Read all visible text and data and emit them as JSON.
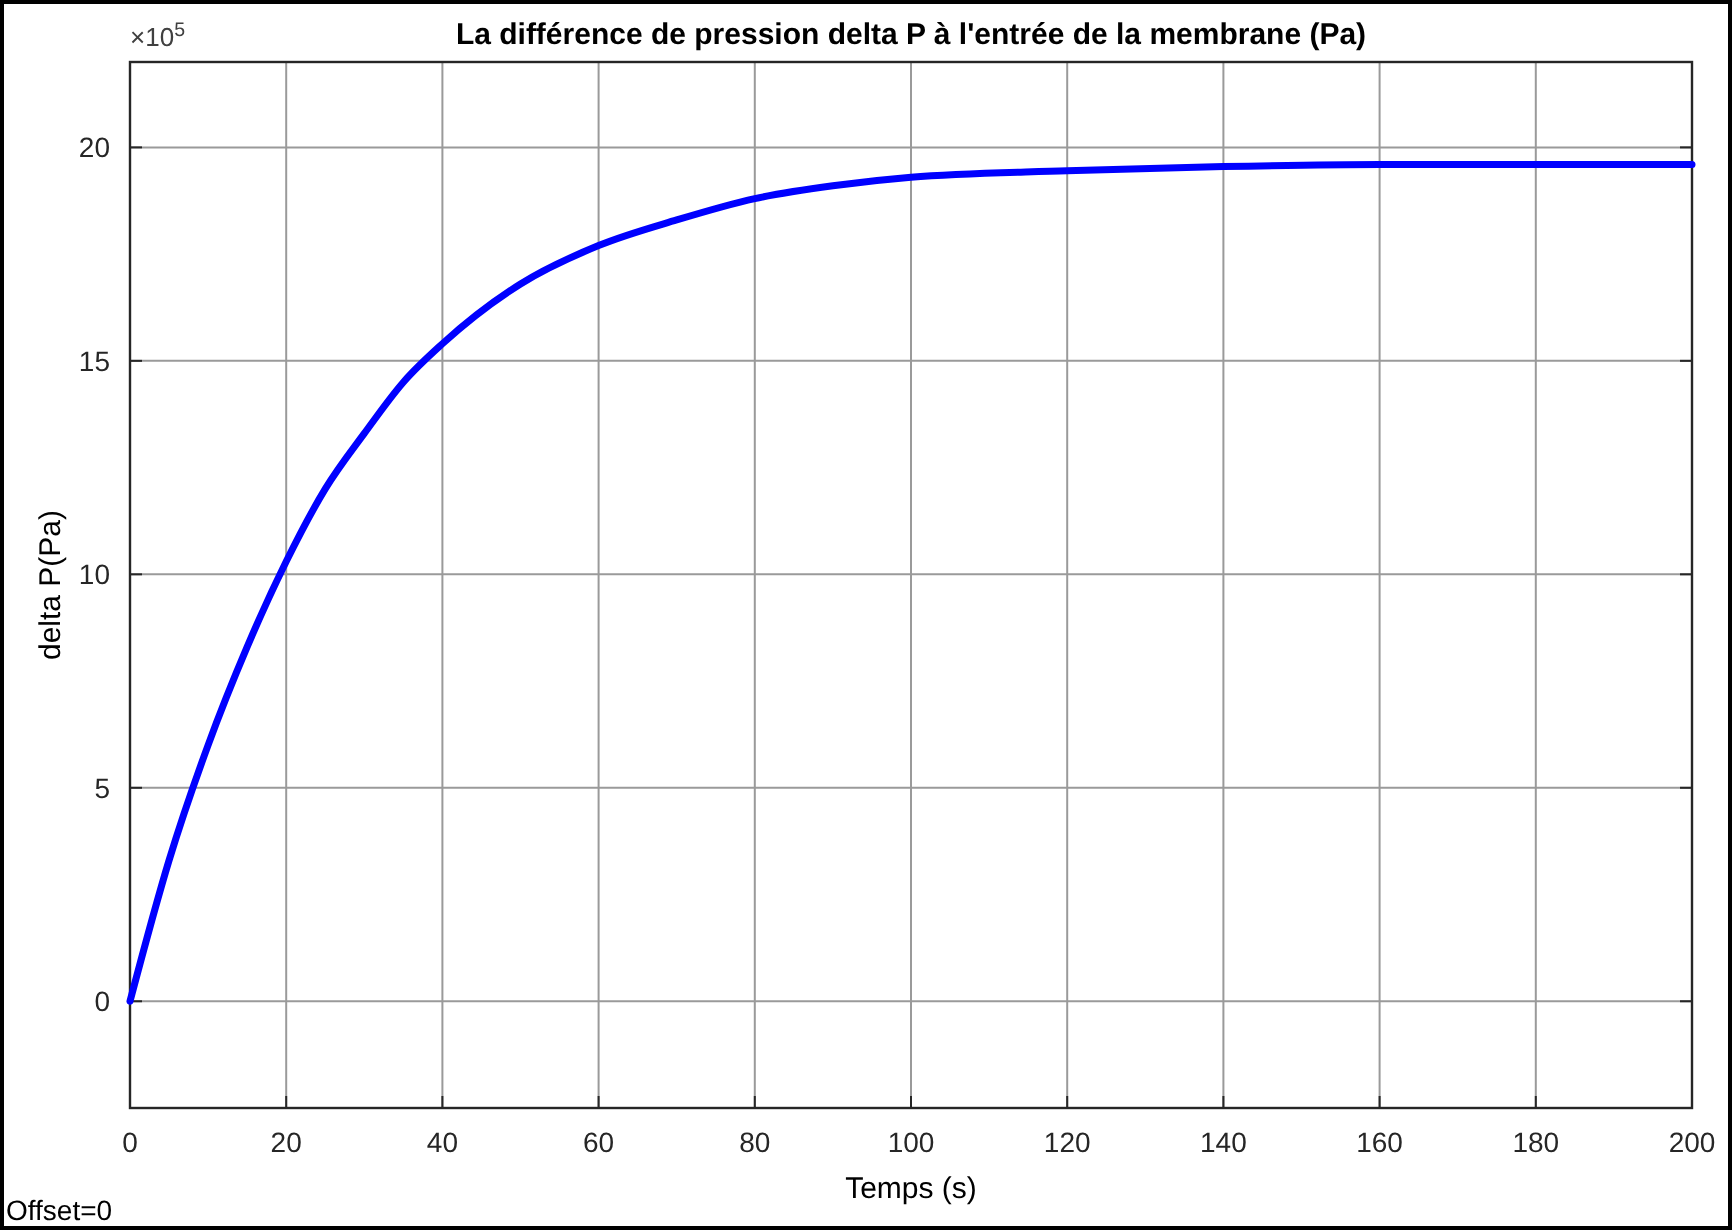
{
  "chart_data": {
    "type": "line",
    "title": "La différence de pression delta P à l'entrée de la membrane (Pa)",
    "xlabel": "Temps (s)",
    "ylabel": "delta P(Pa)",
    "x": [
      0,
      5,
      10,
      15,
      20,
      25,
      30,
      35,
      40,
      50,
      60,
      70,
      80,
      90,
      100,
      120,
      140,
      160,
      180,
      200
    ],
    "series": [
      {
        "color": "#0000ff",
        "values": [
          0,
          3.3,
          6.0,
          8.3,
          10.3,
          12.0,
          13.3,
          14.5,
          15.4,
          16.8,
          17.7,
          18.3,
          18.8,
          19.1,
          19.3,
          19.45,
          19.55,
          19.6,
          19.6,
          19.6
        ]
      }
    ],
    "xlim": [
      0,
      200
    ],
    "xticks": [
      0,
      20,
      40,
      60,
      80,
      100,
      120,
      140,
      160,
      180,
      200
    ],
    "ylim": [
      -2.5,
      22
    ],
    "yticks": [
      0,
      5,
      10,
      15,
      20
    ],
    "grid": true,
    "marker": "none",
    "line_style": "solid",
    "annotations": [
      "×10$^{5}$",
      "Offset=0"
    ]
  }
}
